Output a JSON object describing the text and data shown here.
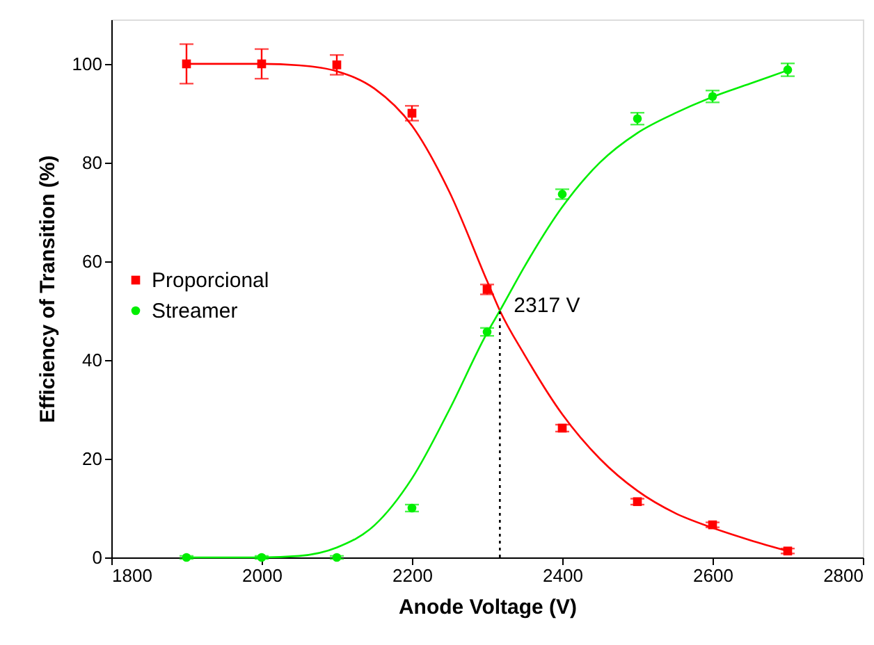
{
  "chart_data": {
    "type": "scatter",
    "xlabel": "Anode Voltage (V)",
    "ylabel": "Efficiency of Transition (%)",
    "xlim": [
      1800,
      2800
    ],
    "xticks": [
      1800,
      2000,
      2200,
      2400,
      2600,
      2800
    ],
    "ylim": [
      0,
      109
    ],
    "yticks": [
      0,
      20,
      40,
      60,
      80,
      100
    ],
    "grid": false,
    "legend": "left",
    "x": [
      1900,
      2000,
      2100,
      2200,
      2300,
      2400,
      2500,
      2600,
      2700
    ],
    "series": [
      {
        "name": "Proporcional",
        "color": "#ff0000",
        "marker": "square",
        "values": [
          100,
          100,
          99.8,
          90,
          54.3,
          26.2,
          11.3,
          6.6,
          1.3
        ],
        "errors": [
          4,
          3,
          2,
          1.5,
          1,
          0.7,
          0.6,
          0.5,
          0.5
        ]
      },
      {
        "name": "Streamer",
        "color": "#00ee00",
        "marker": "circle",
        "values": [
          0,
          0,
          0,
          10,
          45.7,
          73.6,
          88.9,
          93.4,
          98.8
        ],
        "errors": [
          0.3,
          0.3,
          0.3,
          0.7,
          0.8,
          1,
          1.2,
          1.2,
          1.3
        ]
      },
      {
        "type": "line",
        "color": "#ff0000",
        "x": [
          1900,
          2000,
          2050,
          2100,
          2150,
          2200,
          2250,
          2300,
          2317,
          2350,
          2400,
          2450,
          2500,
          2550,
          2600,
          2650,
          2700
        ],
        "values": [
          100,
          100,
          99.7,
          98.5,
          95,
          87.5,
          74,
          56,
          50,
          41,
          29,
          20,
          13.5,
          9,
          6,
          3.5,
          1.3
        ]
      },
      {
        "type": "line",
        "color": "#00ee00",
        "x": [
          1900,
          2000,
          2050,
          2100,
          2150,
          2200,
          2250,
          2300,
          2317,
          2350,
          2400,
          2450,
          2500,
          2550,
          2600,
          2650,
          2700
        ],
        "values": [
          0,
          0,
          0.3,
          2,
          6.5,
          16,
          30,
          45.5,
          50,
          59,
          71,
          80,
          86,
          90,
          93.3,
          96,
          98.7
        ]
      }
    ],
    "annotations": [
      {
        "text": "2317 V",
        "x": 2317,
        "y": 50
      }
    ],
    "ref_lines": [
      {
        "axis": "x",
        "value": 2317,
        "line_style": "dotted",
        "color": "#000000"
      }
    ]
  }
}
